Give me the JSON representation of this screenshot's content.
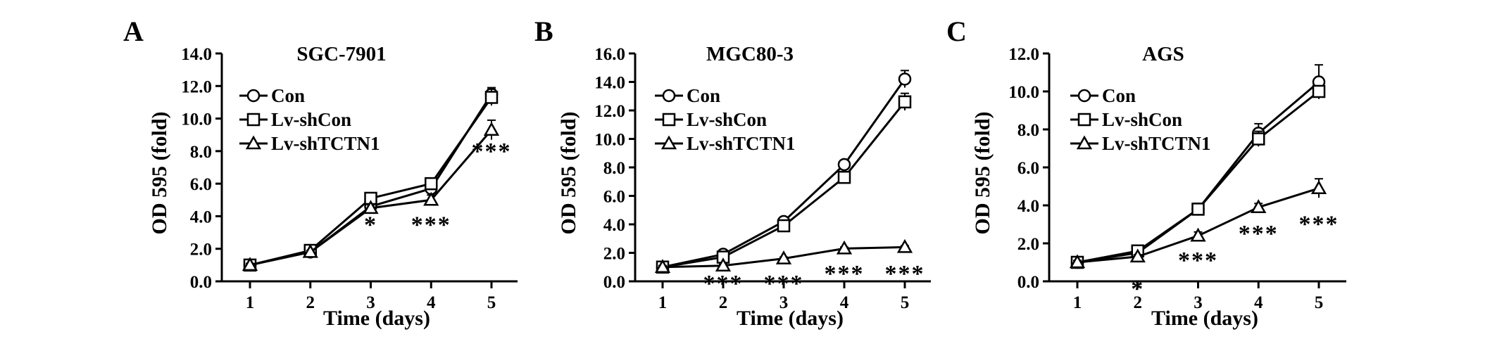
{
  "chart_data": [
    {
      "panel_label": "A",
      "title": "SGC-7901",
      "type": "line",
      "xlabel": "Time (days)",
      "ylabel": "OD 595 (fold)",
      "xlim": [
        1,
        5
      ],
      "ylim": [
        0,
        14
      ],
      "x_ticks": [
        "1",
        "2",
        "3",
        "4",
        "5"
      ],
      "y_ticks": [
        "0.0",
        "2.0",
        "4.0",
        "6.0",
        "8.0",
        "10.0",
        "12.0",
        "14.0"
      ],
      "x": [
        1,
        2,
        3,
        4,
        5
      ],
      "legend_placement": "top-left",
      "series": [
        {
          "name": "Con",
          "marker": "circle",
          "values": [
            1.0,
            1.8,
            4.6,
            5.7,
            11.5
          ],
          "error": [
            0.1,
            0.1,
            0.2,
            0.2,
            0.4
          ]
        },
        {
          "name": "Lv-shCon",
          "marker": "square",
          "values": [
            1.0,
            1.9,
            5.1,
            6.0,
            11.3
          ],
          "error": [
            0.1,
            0.1,
            0.2,
            0.3,
            0.5
          ]
        },
        {
          "name": "Lv-shTCTN1",
          "marker": "triangle",
          "values": [
            1.0,
            1.8,
            4.5,
            5.0,
            9.3
          ],
          "error": [
            0.1,
            0.1,
            0.2,
            0.3,
            0.6
          ]
        }
      ],
      "annotations": [
        {
          "x": 3,
          "y": 3.7,
          "text": "*"
        },
        {
          "x": 4,
          "y": 3.7,
          "text": "***"
        },
        {
          "x": 5,
          "y": 8.2,
          "text": "***"
        }
      ]
    },
    {
      "panel_label": "B",
      "title": "MGC80-3",
      "type": "line",
      "xlabel": "Time (days)",
      "ylabel": "OD 595 (fold)",
      "xlim": [
        1,
        5
      ],
      "ylim": [
        0,
        16
      ],
      "x_ticks": [
        "1",
        "2",
        "3",
        "4",
        "5"
      ],
      "y_ticks": [
        "0.0",
        "2.0",
        "4.0",
        "6.0",
        "8.0",
        "10.0",
        "12.0",
        "14.0",
        "16.0"
      ],
      "x": [
        1,
        2,
        3,
        4,
        5
      ],
      "legend_placement": "top-left",
      "series": [
        {
          "name": "Con",
          "marker": "circle",
          "values": [
            1.0,
            1.9,
            4.2,
            8.2,
            14.2
          ],
          "error": [
            0.1,
            0.1,
            0.2,
            0.2,
            0.6
          ]
        },
        {
          "name": "Lv-shCon",
          "marker": "square",
          "values": [
            1.0,
            1.7,
            3.9,
            7.3,
            12.6
          ],
          "error": [
            0.1,
            0.1,
            0.2,
            0.2,
            0.6
          ]
        },
        {
          "name": "Lv-shTCTN1",
          "marker": "triangle",
          "values": [
            1.0,
            1.1,
            1.6,
            2.3,
            2.4
          ],
          "error": [
            0.1,
            0.1,
            0.1,
            0.1,
            0.1
          ]
        }
      ],
      "annotations": [
        {
          "x": 2,
          "y": 0.1,
          "text": "***"
        },
        {
          "x": 3,
          "y": 0.1,
          "text": "***"
        },
        {
          "x": 4,
          "y": 0.8,
          "text": "***"
        },
        {
          "x": 5,
          "y": 0.8,
          "text": "***"
        }
      ]
    },
    {
      "panel_label": "C",
      "title": "AGS",
      "type": "line",
      "xlabel": "Time (days)",
      "ylabel": "OD 595 (fold)",
      "xlim": [
        1,
        5
      ],
      "ylim": [
        0,
        12
      ],
      "x_ticks": [
        "1",
        "2",
        "3",
        "4",
        "5"
      ],
      "y_ticks": [
        "0.0",
        "2.0",
        "4.0",
        "6.0",
        "8.0",
        "10.0",
        "12.0"
      ],
      "x": [
        1,
        2,
        3,
        4,
        5
      ],
      "legend_placement": "top-left",
      "series": [
        {
          "name": "Con",
          "marker": "circle",
          "values": [
            1.0,
            1.5,
            3.8,
            7.8,
            10.5
          ],
          "error": [
            0.1,
            0.1,
            0.3,
            0.5,
            0.9
          ]
        },
        {
          "name": "Lv-shCon",
          "marker": "square",
          "values": [
            1.0,
            1.6,
            3.8,
            7.5,
            10.0
          ],
          "error": [
            0.1,
            0.1,
            0.3,
            0.4,
            0.3
          ]
        },
        {
          "name": "Lv-shTCTN1",
          "marker": "triangle",
          "values": [
            1.0,
            1.3,
            2.4,
            3.9,
            4.9
          ],
          "error": [
            0.1,
            0.1,
            0.2,
            0.2,
            0.5
          ]
        }
      ],
      "annotations": [
        {
          "x": 2,
          "y": -0.2,
          "text": "*"
        },
        {
          "x": 3,
          "y": 1.3,
          "text": "***"
        },
        {
          "x": 4,
          "y": 2.7,
          "text": "***"
        },
        {
          "x": 5,
          "y": 3.2,
          "text": "***"
        }
      ]
    }
  ]
}
